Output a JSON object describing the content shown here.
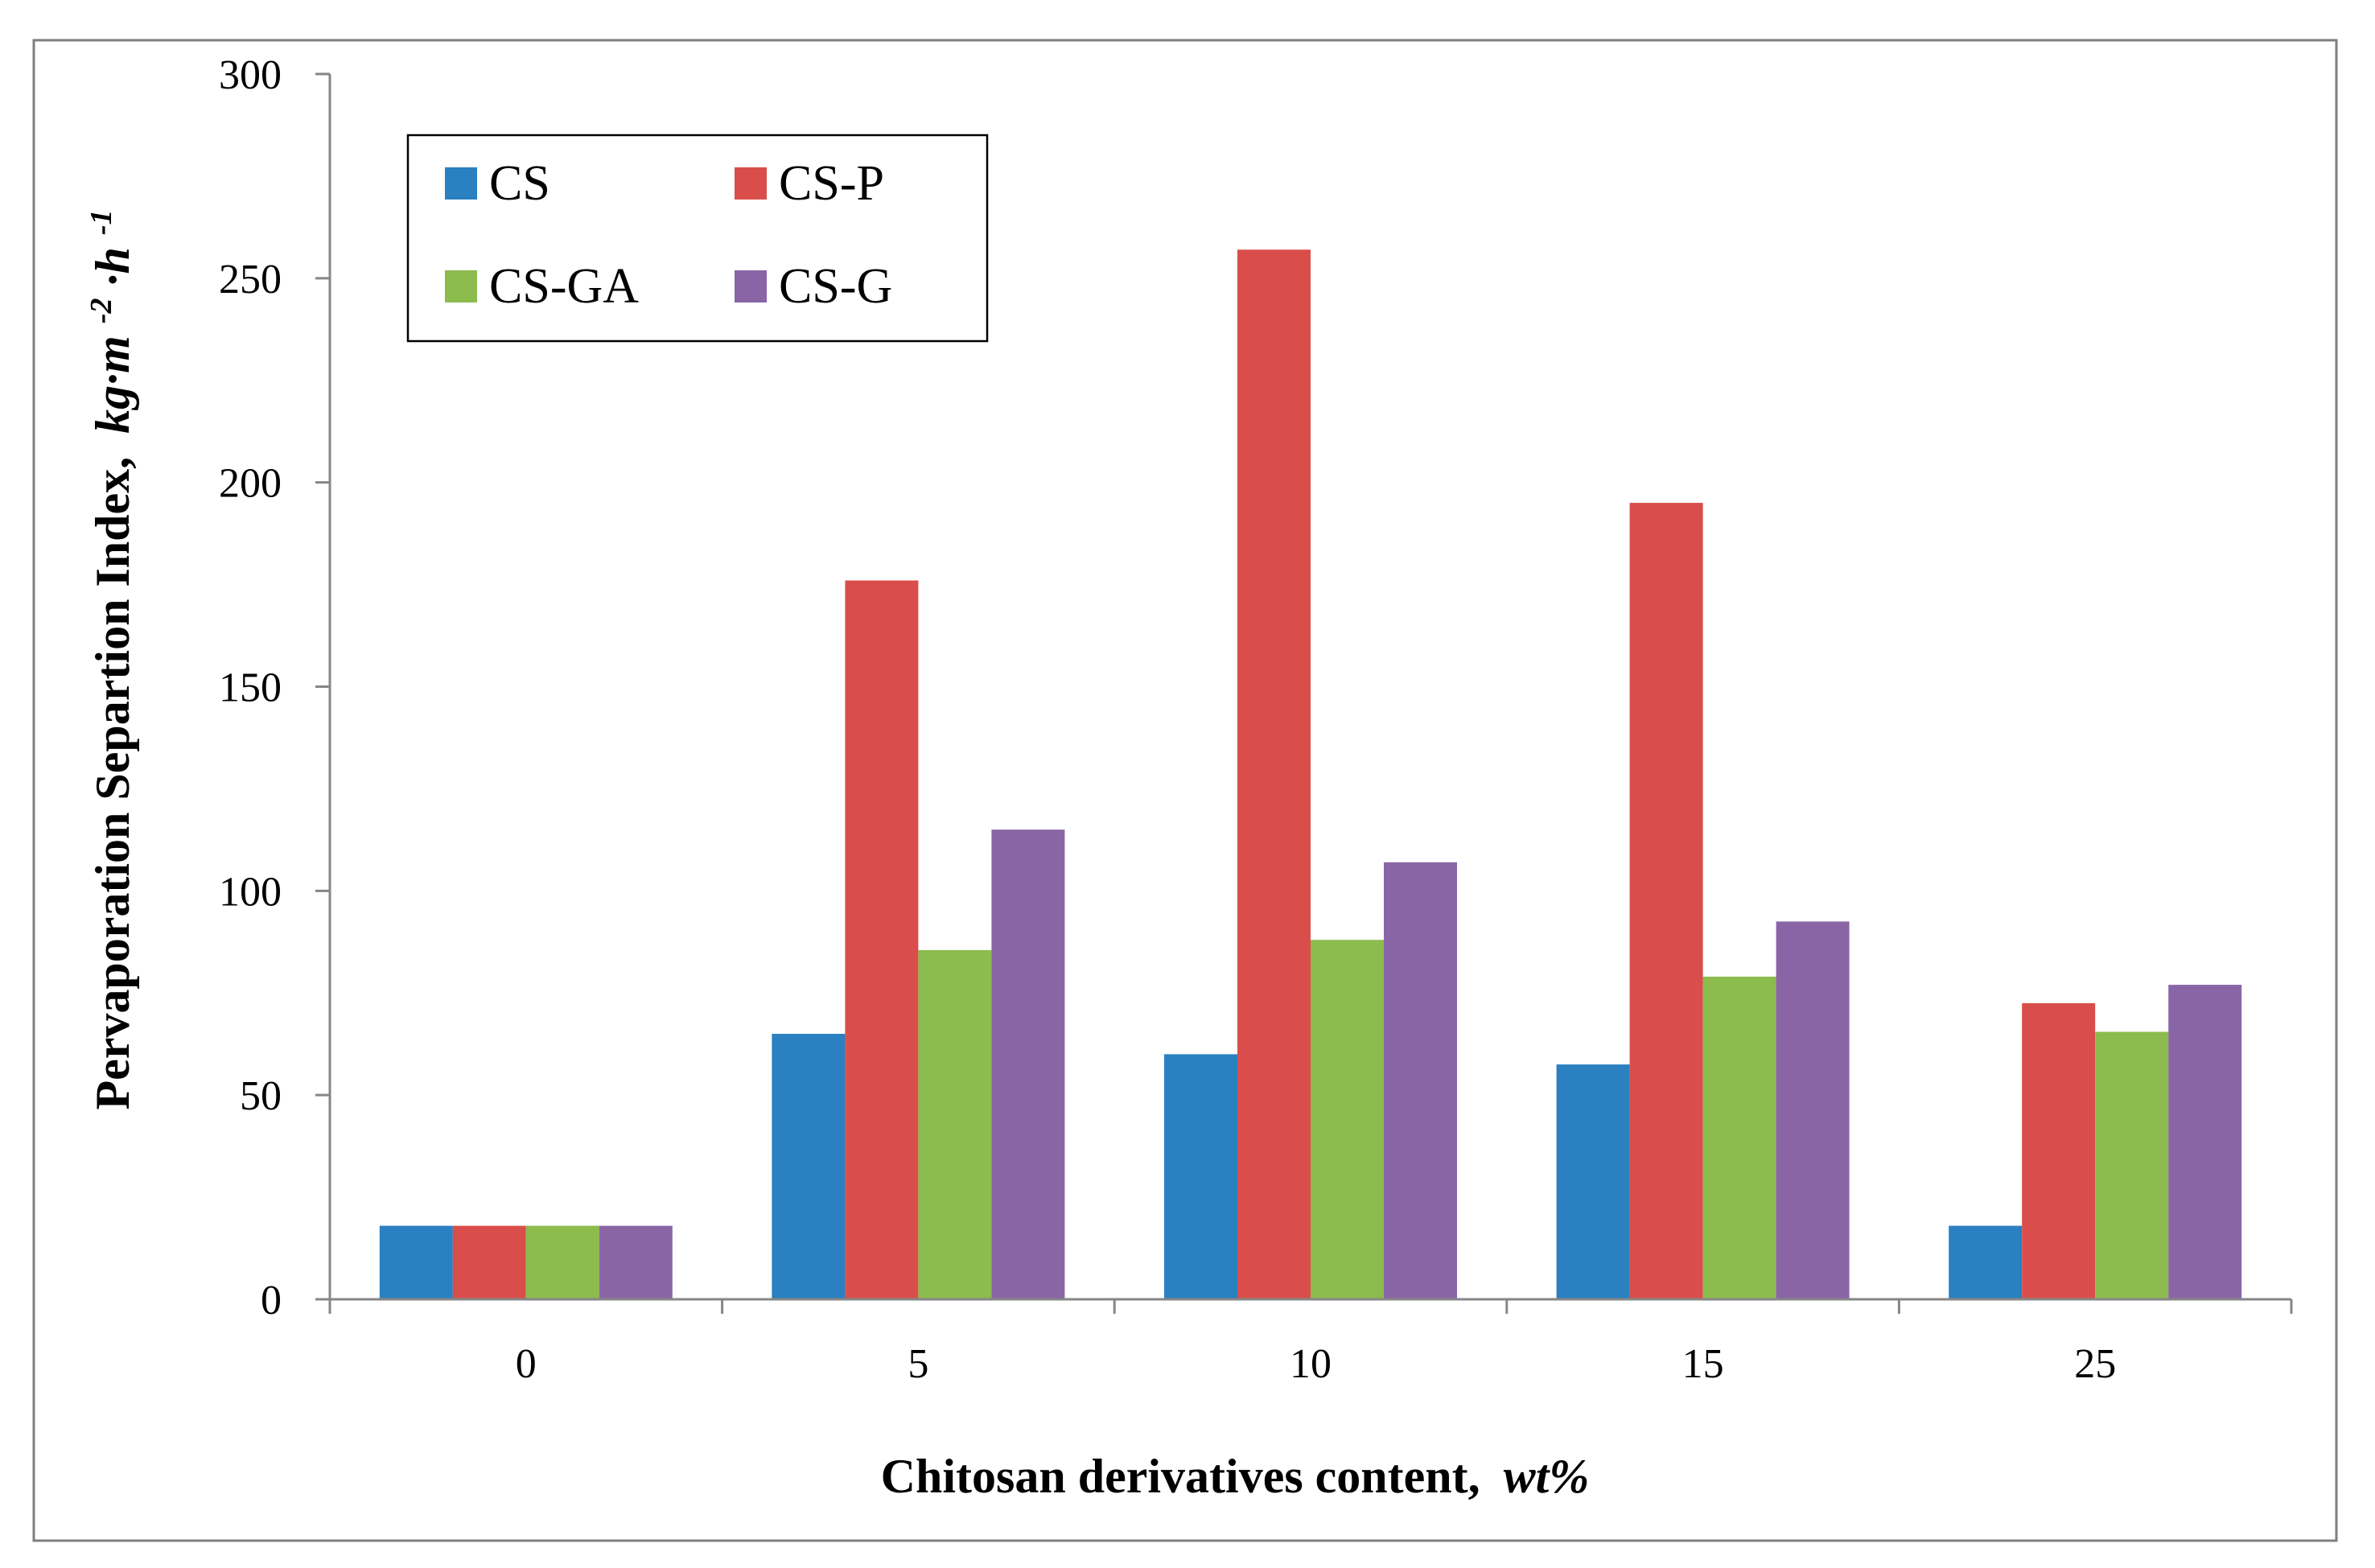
{
  "chart_data": {
    "type": "bar",
    "title": "",
    "xlabel": "Chitosan derivatives content,",
    "xlabel_unit": "wt%",
    "ylabel": "Pervaporation Separtion Index,",
    "ylabel_unit_parts": [
      "kg·m",
      "-2",
      "·h",
      "-1"
    ],
    "categories": [
      "0",
      "5",
      "10",
      "15",
      "25"
    ],
    "series": [
      {
        "name": "CS",
        "color": "#2a80c0",
        "values": [
          18,
          65,
          60,
          57.5,
          18
        ]
      },
      {
        "name": "CS-P",
        "color": "#d94e4b",
        "values": [
          18,
          176,
          257,
          195,
          72.5
        ]
      },
      {
        "name": "CS-GA",
        "color": "#8cbb4e",
        "values": [
          18,
          85.5,
          88,
          79,
          65.5
        ]
      },
      {
        "name": "CS-G",
        "color": "#8a65a6",
        "values": [
          18,
          115,
          107,
          92.5,
          77
        ]
      }
    ],
    "ylim": [
      0,
      300
    ],
    "yticks": [
      0,
      50,
      100,
      150,
      200,
      250,
      300
    ],
    "grid": false,
    "legend_position": "top-left"
  }
}
